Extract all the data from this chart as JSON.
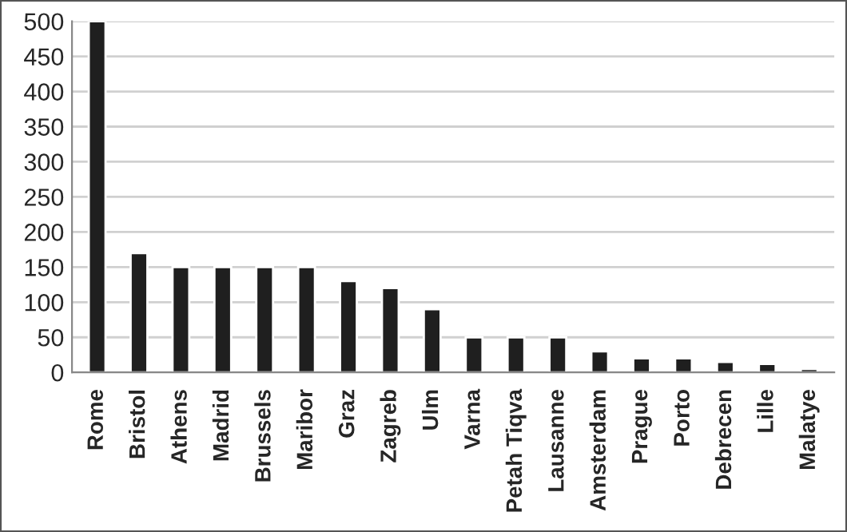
{
  "chart_data": {
    "type": "bar",
    "categories": [
      "Rome",
      "Bristol",
      "Athens",
      "Madrid",
      "Brussels",
      "Maribor",
      "Graz",
      "Zagreb",
      "Ulm",
      "Varna",
      "Petah Tiqva",
      "Lausanne",
      "Amsterdam",
      "Prague",
      "Porto",
      "Debrecen",
      "Lille",
      "Malatye"
    ],
    "values": [
      500,
      170,
      150,
      150,
      150,
      150,
      130,
      120,
      90,
      50,
      50,
      50,
      30,
      20,
      20,
      15,
      12,
      5
    ],
    "color": "#1f1f1f",
    "ylim": [
      0,
      500
    ],
    "yticks": [
      0,
      50,
      100,
      150,
      200,
      250,
      300,
      350,
      400,
      450,
      500
    ],
    "grid": "y"
  }
}
